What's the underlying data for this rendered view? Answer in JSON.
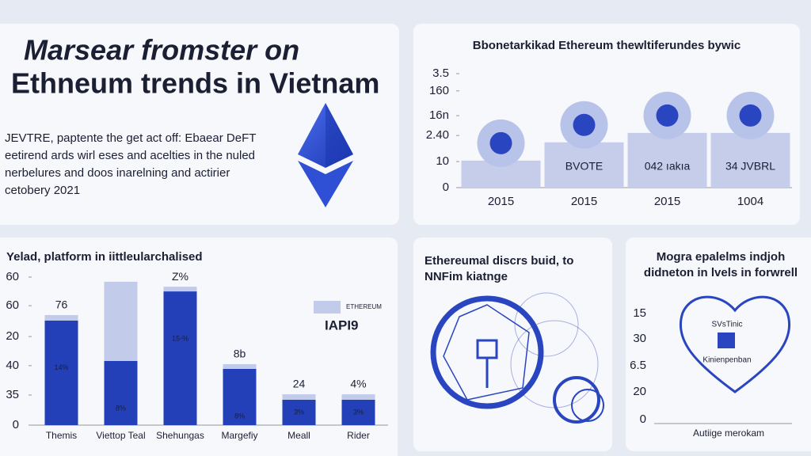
{
  "header": {
    "title": [
      "Marsear fromster on",
      "Ethneum trends in Vietnam"
    ],
    "text": [
      "JEVTRE, paptente the get act off: Ebaear DeFT",
      "eetirend ards wirl eses and acelties in the nuled",
      "nerbelures and doos inarelning and actirier",
      "cetobery 2021"
    ]
  },
  "chart_data": [
    {
      "type": "bar",
      "title": "Bbonetarkikad Ethereum thewltiferundes bywic",
      "categories": [
        "2015",
        "2015",
        "2015",
        "1004"
      ],
      "values": [
        0.83,
        1.39,
        1.68,
        1.68
      ],
      "color": "#c5cdeb",
      "annotations": [
        "BVOTE",
        "042 ıakıa",
        "34 JVBRL"
      ],
      "ylim": [
        0,
        3.5
      ],
      "yticks": [
        0,
        {
          "value": 0.8,
          "label": "10"
        },
        {
          "value": 1.6,
          "label": "2.40"
        },
        {
          "value": 2.21,
          "label": "16n"
        },
        {
          "value": 2.97,
          "label": "160"
        },
        3.5
      ]
    },
    {
      "type": "stacked-bar",
      "title": "Yelad, platform in iittleularchalised",
      "categories": [
        "Themis",
        "Viettop Teal",
        "Shehungas",
        "Margefiy",
        "Meall",
        "Rider"
      ],
      "series": [
        {
          "name": "IAPI9",
          "color": "#2340b8",
          "values": [
            42.4,
            26,
            54.2,
            22.8,
            10.3,
            10.3
          ]
        },
        {
          "name": "ETHEREUM",
          "color": "#c3cbeb",
          "values": [
            2.2,
            32.1,
            1.9,
            1.9,
            2.2,
            2.2
          ]
        }
      ],
      "top_labels": [
        "76",
        "",
        "Z%",
        "8b",
        "24",
        "4%"
      ],
      "inner_labels": [
        "14%",
        "8%",
        "15-%",
        "8%",
        "3%",
        "3%"
      ],
      "ylim": [
        0,
        60
      ],
      "yticks": [
        0,
        {
          "value": 12.2,
          "label": "35"
        },
        {
          "value": 24.1,
          "label": "40"
        },
        {
          "value": 35.9,
          "label": "20"
        },
        {
          "value": 48.4,
          "label": "60"
        },
        60
      ]
    }
  ],
  "diagram_panel": {
    "title": [
      "Ethereumal discrs buid, to",
      "NNFim kiatnge"
    ]
  },
  "heart_panel": {
    "title": [
      "Mogra epalelms indjoh",
      "didneton in lvels in forwrell"
    ],
    "labels": [
      "15",
      "30",
      "6.5",
      "20",
      "0"
    ],
    "heart_text": [
      "SVsTinic",
      "Kinienpenban"
    ],
    "x_label": "Autiige merokam"
  }
}
